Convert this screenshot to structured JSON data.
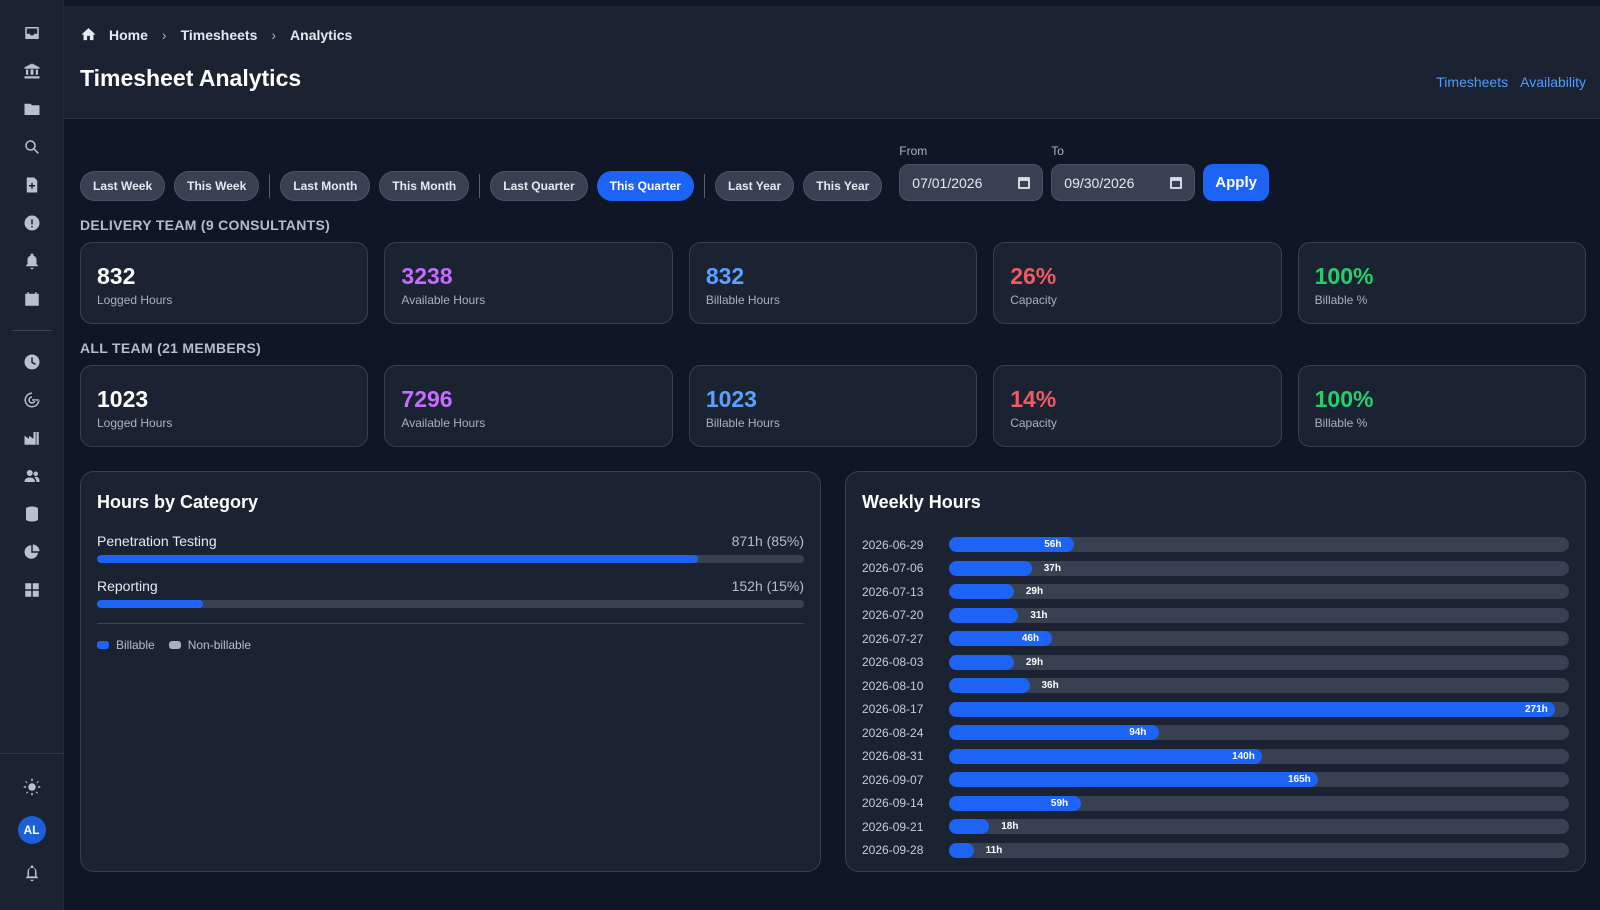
{
  "breadcrumb": {
    "home": "Home",
    "section": "Timesheets",
    "current": "Analytics"
  },
  "page_title": "Timesheet Analytics",
  "header_links": [
    "Timesheets",
    "Availability"
  ],
  "filters": {
    "groups": [
      [
        "Last Week",
        "This Week"
      ],
      [
        "Last Month",
        "This Month"
      ],
      [
        "Last Quarter",
        "This Quarter"
      ],
      [
        "Last Year",
        "This Year"
      ]
    ],
    "active": "This Quarter",
    "from_label": "From",
    "from_value": "07/01/2026",
    "to_label": "To",
    "to_value": "09/30/2026",
    "apply_label": "Apply"
  },
  "sections": [
    {
      "label": "DELIVERY TEAM (9 CONSULTANTS)",
      "stats": [
        {
          "value": "832",
          "label": "Logged Hours",
          "color": "#ffffff"
        },
        {
          "value": "3238",
          "label": "Available Hours",
          "color": "#c36cff"
        },
        {
          "value": "832",
          "label": "Billable Hours",
          "color": "#5aa2ff"
        },
        {
          "value": "26%",
          "label": "Capacity",
          "color": "#f05b62"
        },
        {
          "value": "100%",
          "label": "Billable %",
          "color": "#25d06c"
        }
      ]
    },
    {
      "label": "ALL TEAM (21 MEMBERS)",
      "stats": [
        {
          "value": "1023",
          "label": "Logged Hours",
          "color": "#ffffff"
        },
        {
          "value": "7296",
          "label": "Available Hours",
          "color": "#c36cff"
        },
        {
          "value": "1023",
          "label": "Billable Hours",
          "color": "#5aa2ff"
        },
        {
          "value": "14%",
          "label": "Capacity",
          "color": "#f05b62"
        },
        {
          "value": "100%",
          "label": "Billable %",
          "color": "#25d06c"
        }
      ]
    }
  ],
  "category_panel": {
    "title": "Hours by Category",
    "items": [
      {
        "name": "Penetration Testing",
        "value_text": "871h (85%)",
        "fraction": 0.85
      },
      {
        "name": "Reporting",
        "value_text": "152h (15%)",
        "fraction": 0.15
      }
    ],
    "legend": [
      {
        "label": "Billable",
        "color": "#1d63f5"
      },
      {
        "label": "Non-billable",
        "color": "#a8b1bf"
      }
    ]
  },
  "weekly_panel": {
    "title": "Weekly Hours",
    "max_hours": 271,
    "weeks": [
      {
        "date": "2026-06-29",
        "hours": 56,
        "label": "56h"
      },
      {
        "date": "2026-07-06",
        "hours": 37,
        "label": "37h"
      },
      {
        "date": "2026-07-13",
        "hours": 29,
        "label": "29h"
      },
      {
        "date": "2026-07-20",
        "hours": 31,
        "label": "31h"
      },
      {
        "date": "2026-07-27",
        "hours": 46,
        "label": "46h"
      },
      {
        "date": "2026-08-03",
        "hours": 29,
        "label": "29h"
      },
      {
        "date": "2026-08-10",
        "hours": 36,
        "label": "36h"
      },
      {
        "date": "2026-08-17",
        "hours": 271,
        "label": "271h"
      },
      {
        "date": "2026-08-24",
        "hours": 94,
        "label": "94h"
      },
      {
        "date": "2026-08-31",
        "hours": 140,
        "label": "140h"
      },
      {
        "date": "2026-09-07",
        "hours": 165,
        "label": "165h"
      },
      {
        "date": "2026-09-14",
        "hours": 59,
        "label": "59h"
      },
      {
        "date": "2026-09-21",
        "hours": 18,
        "label": "18h"
      },
      {
        "date": "2026-09-28",
        "hours": 11,
        "label": "11h"
      }
    ]
  },
  "sidebar": {
    "top_icons": [
      "inbox-icon",
      "bank-icon",
      "folder-icon",
      "search-icon",
      "add-document-icon",
      "alert-icon",
      "bell-icon",
      "calendar-icon"
    ],
    "mid_icons": [
      "clock-icon",
      "radar-icon",
      "factory-icon",
      "users-icon",
      "database-icon",
      "pie-chart-icon",
      "grid-icon"
    ],
    "user_initials": "AL"
  },
  "colors": {
    "accent": "#1d63f5",
    "panel": "#1b2332",
    "background": "#0f1626",
    "link": "#4f9cff"
  }
}
